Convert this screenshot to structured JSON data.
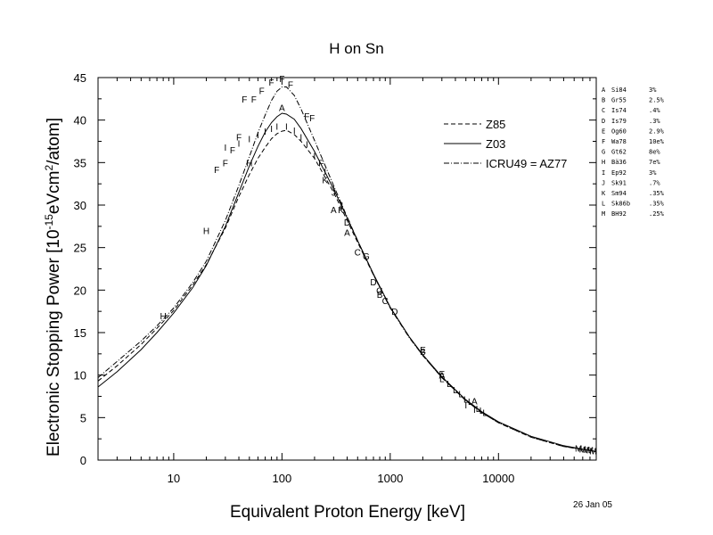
{
  "chart_data": {
    "type": "line",
    "title": "H on Sn",
    "xlabel": "Equivalent Proton Energy [keV]",
    "ylabel": {
      "prefix": "Electronic Stopping Power [10",
      "exp1": "-15",
      "mid": "eVcm",
      "exp2": "2",
      "suffix": "/atom]"
    },
    "date": "26 Jan 05",
    "x_scale": "log",
    "xlim": [
      2,
      80000
    ],
    "ylim": [
      0,
      45
    ],
    "x_ticks": [
      10,
      100,
      1000,
      10000
    ],
    "x_tick_labels": [
      "10",
      "100",
      "1000",
      "10000"
    ],
    "y_ticks": [
      0,
      5,
      10,
      15,
      20,
      25,
      30,
      35,
      40,
      45
    ],
    "y_tick_labels": [
      "0",
      "5",
      "10",
      "15",
      "20",
      "25",
      "30",
      "35",
      "40",
      "45"
    ],
    "grid": false,
    "legend_position": "top-right",
    "series": [
      {
        "name": "Z85",
        "style": "dashed",
        "points": [
          [
            2,
            9.3
          ],
          [
            3,
            11.1
          ],
          [
            5,
            13.6
          ],
          [
            7,
            15.5
          ],
          [
            10,
            17.6
          ],
          [
            15,
            20.6
          ],
          [
            20,
            23.0
          ],
          [
            30,
            27.3
          ],
          [
            40,
            31.0
          ],
          [
            50,
            33.6
          ],
          [
            60,
            35.5
          ],
          [
            70,
            36.8
          ],
          [
            80,
            37.8
          ],
          [
            90,
            38.4
          ],
          [
            100,
            38.7
          ],
          [
            110,
            38.8
          ],
          [
            130,
            38.3
          ],
          [
            150,
            37.5
          ],
          [
            200,
            35.5
          ],
          [
            300,
            31.5
          ],
          [
            400,
            28.2
          ],
          [
            500,
            25.6
          ],
          [
            700,
            21.8
          ],
          [
            1000,
            18.0
          ],
          [
            1500,
            14.5
          ],
          [
            2000,
            12.3
          ],
          [
            3000,
            9.7
          ],
          [
            5000,
            7.0
          ],
          [
            7000,
            5.6
          ],
          [
            10000,
            4.4
          ],
          [
            20000,
            2.7
          ],
          [
            40000,
            1.6
          ],
          [
            80000,
            1.0
          ]
        ]
      },
      {
        "name": "Z03",
        "style": "solid",
        "points": [
          [
            2,
            8.6
          ],
          [
            3,
            10.4
          ],
          [
            5,
            13.0
          ],
          [
            7,
            15.0
          ],
          [
            10,
            17.3
          ],
          [
            15,
            20.3
          ],
          [
            20,
            22.9
          ],
          [
            30,
            27.5
          ],
          [
            40,
            31.5
          ],
          [
            50,
            34.6
          ],
          [
            60,
            36.9
          ],
          [
            70,
            38.6
          ],
          [
            80,
            39.7
          ],
          [
            90,
            40.4
          ],
          [
            100,
            40.8
          ],
          [
            110,
            40.7
          ],
          [
            130,
            40.1
          ],
          [
            150,
            39.0
          ],
          [
            200,
            36.3
          ],
          [
            300,
            31.9
          ],
          [
            400,
            28.5
          ],
          [
            500,
            25.8
          ],
          [
            700,
            21.9
          ],
          [
            1000,
            18.0
          ],
          [
            1500,
            14.5
          ],
          [
            2000,
            12.4
          ],
          [
            3000,
            9.8
          ],
          [
            5000,
            7.1
          ],
          [
            7000,
            5.7
          ],
          [
            10000,
            4.5
          ],
          [
            20000,
            2.8
          ],
          [
            40000,
            1.7
          ],
          [
            80000,
            1.0
          ]
        ]
      },
      {
        "name": "ICRU49 = AZ77",
        "style": "dashdot",
        "points": [
          [
            2,
            9.7
          ],
          [
            3,
            11.6
          ],
          [
            5,
            14.0
          ],
          [
            7,
            15.8
          ],
          [
            10,
            17.9
          ],
          [
            15,
            20.9
          ],
          [
            20,
            23.4
          ],
          [
            30,
            28.2
          ],
          [
            40,
            32.3
          ],
          [
            50,
            35.7
          ],
          [
            60,
            38.5
          ],
          [
            70,
            40.6
          ],
          [
            80,
            42.3
          ],
          [
            90,
            43.4
          ],
          [
            100,
            43.9
          ],
          [
            110,
            43.9
          ],
          [
            130,
            42.9
          ],
          [
            150,
            41.3
          ],
          [
            200,
            37.6
          ],
          [
            300,
            32.3
          ],
          [
            400,
            28.6
          ],
          [
            500,
            25.8
          ],
          [
            700,
            21.8
          ],
          [
            1000,
            17.9
          ],
          [
            1500,
            14.4
          ],
          [
            2000,
            12.3
          ],
          [
            3000,
            9.7
          ],
          [
            5000,
            7.0
          ],
          [
            7000,
            5.6
          ],
          [
            10000,
            4.4
          ],
          [
            20000,
            2.7
          ],
          [
            40000,
            1.6
          ],
          [
            80000,
            1.0
          ]
        ]
      }
    ],
    "sources": [
      {
        "letter": "A",
        "name": "Si84",
        "error": "3%",
        "points": [
          [
            100,
            41.5
          ],
          [
            300,
            29.5
          ],
          [
            400,
            26.8
          ],
          [
            3000,
            10.0
          ],
          [
            6000,
            7.0
          ]
        ]
      },
      {
        "letter": "B",
        "name": "Gr55",
        "error": "2.5%",
        "points": [
          [
            800,
            19.5
          ],
          [
            2000,
            12.8
          ]
        ]
      },
      {
        "letter": "C",
        "name": "Is74",
        "error": ".4%",
        "points": [
          [
            500,
            24.5
          ],
          [
            900,
            18.8
          ]
        ]
      },
      {
        "letter": "D",
        "name": "Is79",
        "error": ".3%",
        "points": [
          [
            400,
            28.0
          ],
          [
            700,
            21.0
          ],
          [
            1100,
            17.5
          ]
        ]
      },
      {
        "letter": "E",
        "name": "Og60",
        "error": "2.9%",
        "points": [
          [
            2000,
            13.0
          ],
          [
            3000,
            10.2
          ]
        ]
      },
      {
        "letter": "F",
        "name": "Wa78",
        "error": "10e%",
        "points": [
          [
            25,
            34.2
          ],
          [
            30,
            35.0
          ],
          [
            35,
            36.5
          ],
          [
            40,
            38.0
          ],
          [
            45,
            42.5
          ],
          [
            55,
            42.5
          ],
          [
            65,
            43.5
          ],
          [
            80,
            44.5
          ],
          [
            100,
            44.9
          ],
          [
            120,
            44.2
          ],
          [
            170,
            40.5
          ],
          [
            190,
            40.3
          ],
          [
            230,
            35.0
          ]
        ]
      },
      {
        "letter": "G",
        "name": "Gt62",
        "error": "8e%",
        "points": [
          [
            600,
            24.0
          ],
          [
            800,
            20.0
          ]
        ]
      },
      {
        "letter": "H",
        "name": "Bä36",
        "error": "7e%",
        "points": [
          [
            8,
            17.0
          ],
          [
            20,
            27.0
          ],
          [
            50,
            35.0
          ]
        ]
      },
      {
        "letter": "I",
        "name": "Ep92",
        "error": "3%",
        "points": [
          [
            30,
            36.8
          ],
          [
            40,
            37.3
          ],
          [
            50,
            37.8
          ],
          [
            60,
            38.3
          ],
          [
            70,
            38.7
          ],
          [
            80,
            39.0
          ],
          [
            90,
            39.3
          ],
          [
            110,
            39.3
          ],
          [
            130,
            38.8
          ],
          [
            150,
            38.0
          ],
          [
            170,
            37.2
          ],
          [
            200,
            35.8
          ],
          [
            250,
            34.0
          ],
          [
            300,
            32.0
          ],
          [
            5000,
            6.5
          ],
          [
            6000,
            6.0
          ]
        ]
      },
      {
        "letter": "J",
        "name": "Sk91",
        "error": ".7%",
        "points": [
          [
            300,
            31.5
          ],
          [
            350,
            30.0
          ]
        ]
      },
      {
        "letter": "K",
        "name": "Sm94",
        "error": ".35%",
        "points": [
          [
            250,
            33.0
          ],
          [
            350,
            29.5
          ]
        ]
      },
      {
        "letter": "L",
        "name": "Sk86b",
        "error": ".35%",
        "points": [
          [
            3000,
            9.6
          ],
          [
            3500,
            9.0
          ],
          [
            4000,
            8.3
          ],
          [
            4500,
            7.8
          ],
          [
            5000,
            7.2
          ],
          [
            5500,
            6.9
          ],
          [
            6500,
            6.1
          ],
          [
            7000,
            5.9
          ],
          [
            7500,
            5.6
          ]
        ]
      },
      {
        "letter": "M",
        "name": "BH92",
        "error": ".25%",
        "points": [
          [
            55000,
            1.4
          ],
          [
            60000,
            1.3
          ],
          [
            65000,
            1.25
          ],
          [
            70000,
            1.2
          ],
          [
            75000,
            1.1
          ]
        ]
      }
    ]
  }
}
